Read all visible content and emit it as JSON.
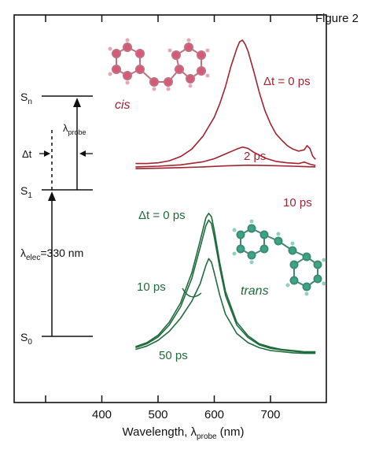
{
  "figure_label": "Figure 2",
  "chart_data": {
    "type": "line",
    "title": "",
    "xlabel_main": "Wavelength, λ",
    "xlabel_sub": "probe",
    "xlabel_unit": "(nm)",
    "xlim": [
      290,
      800
    ],
    "xticks": [
      300,
      400,
      500,
      600,
      700,
      800
    ],
    "xtick_labels": [
      "400",
      "500",
      "600",
      "700"
    ],
    "xtick_label_values": [
      400,
      500,
      600,
      700
    ],
    "grid": false,
    "molecule_labels": {
      "cis": "cis",
      "trans": "trans"
    },
    "colors": {
      "cis": "#a3232f",
      "trans": "#1f6b3c",
      "axis": "#111111"
    },
    "energy_diagram": {
      "levels": [
        {
          "main": "S",
          "sub": "n"
        },
        {
          "main": "S",
          "sub": "1"
        },
        {
          "main": "S",
          "sub": "0"
        }
      ],
      "delta_t_label": "Δt",
      "probe_label_main": "λ",
      "probe_label_sub": "probe",
      "elec_label_main": "λ",
      "elec_label_sub": "elec",
      "elec_label_value": "=330 nm"
    },
    "series": [
      {
        "group": "cis",
        "label": "Δt = 0 ps",
        "color": "#a3232f",
        "x": [
          460,
          480,
          500,
          520,
          540,
          560,
          580,
          600,
          610,
          620,
          630,
          640,
          645,
          650,
          655,
          660,
          670,
          680,
          690,
          700,
          710,
          720,
          730,
          740,
          750,
          760,
          765,
          770,
          775,
          780
        ],
        "y": [
          0.7,
          0.7,
          0.72,
          0.78,
          0.9,
          1.12,
          1.5,
          2.05,
          2.45,
          2.95,
          3.55,
          4.05,
          4.25,
          4.3,
          4.18,
          3.98,
          3.4,
          2.78,
          2.25,
          1.86,
          1.56,
          1.38,
          1.22,
          1.12,
          1.06,
          1.1,
          1.22,
          1.14,
          0.92,
          0.82
        ]
      },
      {
        "group": "cis",
        "label": "2 ps",
        "color": "#a3232f",
        "x": [
          460,
          500,
          540,
          580,
          600,
          620,
          640,
          650,
          660,
          670,
          690,
          710,
          730,
          750,
          760,
          770,
          780
        ],
        "y": [
          0.6,
          0.62,
          0.66,
          0.75,
          0.84,
          0.98,
          1.12,
          1.18,
          1.14,
          1.03,
          0.86,
          0.76,
          0.72,
          0.7,
          0.74,
          0.68,
          0.64
        ]
      },
      {
        "group": "cis",
        "label": "10 ps",
        "color": "#a3232f",
        "x": [
          460,
          500,
          540,
          580,
          620,
          660,
          700,
          740,
          780
        ],
        "y": [
          0.55,
          0.56,
          0.58,
          0.6,
          0.63,
          0.65,
          0.64,
          0.62,
          0.6
        ]
      },
      {
        "group": "trans",
        "label": "Δt = 0 ps",
        "color": "#1f6b3c",
        "x": [
          460,
          480,
          500,
          520,
          540,
          560,
          575,
          585,
          590,
          595,
          600,
          610,
          620,
          640,
          660,
          680,
          700,
          720,
          740,
          760,
          780
        ],
        "y": [
          0.25,
          0.32,
          0.45,
          0.68,
          1.02,
          1.55,
          2.12,
          2.52,
          2.6,
          2.54,
          2.3,
          1.72,
          1.22,
          0.68,
          0.44,
          0.3,
          0.24,
          0.2,
          0.18,
          0.16,
          0.16
        ]
      },
      {
        "group": "trans",
        "label": "10 ps",
        "color": "#1f6b3c",
        "x": [
          460,
          480,
          500,
          520,
          540,
          560,
          575,
          585,
          590,
          595,
          600,
          610,
          620,
          640,
          660,
          680,
          700,
          720,
          740,
          760,
          780
        ],
        "y": [
          0.23,
          0.3,
          0.42,
          0.63,
          0.95,
          1.45,
          2.0,
          2.38,
          2.48,
          2.42,
          2.18,
          1.63,
          1.15,
          0.63,
          0.41,
          0.28,
          0.22,
          0.19,
          0.17,
          0.15,
          0.15
        ]
      },
      {
        "group": "trans",
        "label": "50 ps",
        "color": "#1f6b3c",
        "x": [
          460,
          480,
          500,
          520,
          540,
          560,
          575,
          585,
          590,
          595,
          600,
          610,
          620,
          640,
          660,
          680,
          700,
          720,
          740,
          760,
          780
        ],
        "y": [
          0.2,
          0.26,
          0.36,
          0.52,
          0.75,
          1.05,
          1.36,
          1.68,
          1.8,
          1.74,
          1.55,
          1.15,
          0.82,
          0.48,
          0.32,
          0.23,
          0.18,
          0.16,
          0.14,
          0.13,
          0.13
        ]
      }
    ]
  }
}
